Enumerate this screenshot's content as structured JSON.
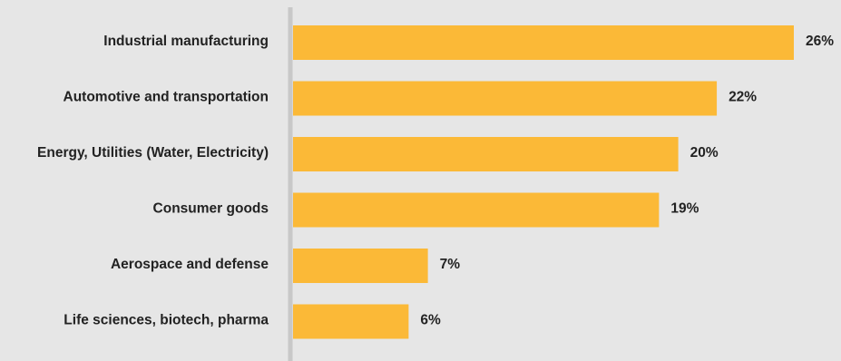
{
  "colors": {
    "background": "#e6e6e6",
    "bar": "#fbb937",
    "axis": "#c8c8c8",
    "text": "#222222"
  },
  "chart_data": {
    "type": "bar",
    "orientation": "horizontal",
    "categories": [
      "Industrial manufacturing",
      "Automotive and transportation",
      "Energy, Utilities (Water, Electricity)",
      "Consumer goods",
      "Aerospace and defense",
      "Life sciences, biotech, pharma"
    ],
    "values": [
      26,
      22,
      20,
      19,
      7,
      6
    ],
    "value_labels": [
      "26%",
      "22%",
      "20%",
      "19%",
      "7%",
      "6%"
    ],
    "xlim": [
      0,
      26
    ],
    "grid": false,
    "legend": "none"
  }
}
